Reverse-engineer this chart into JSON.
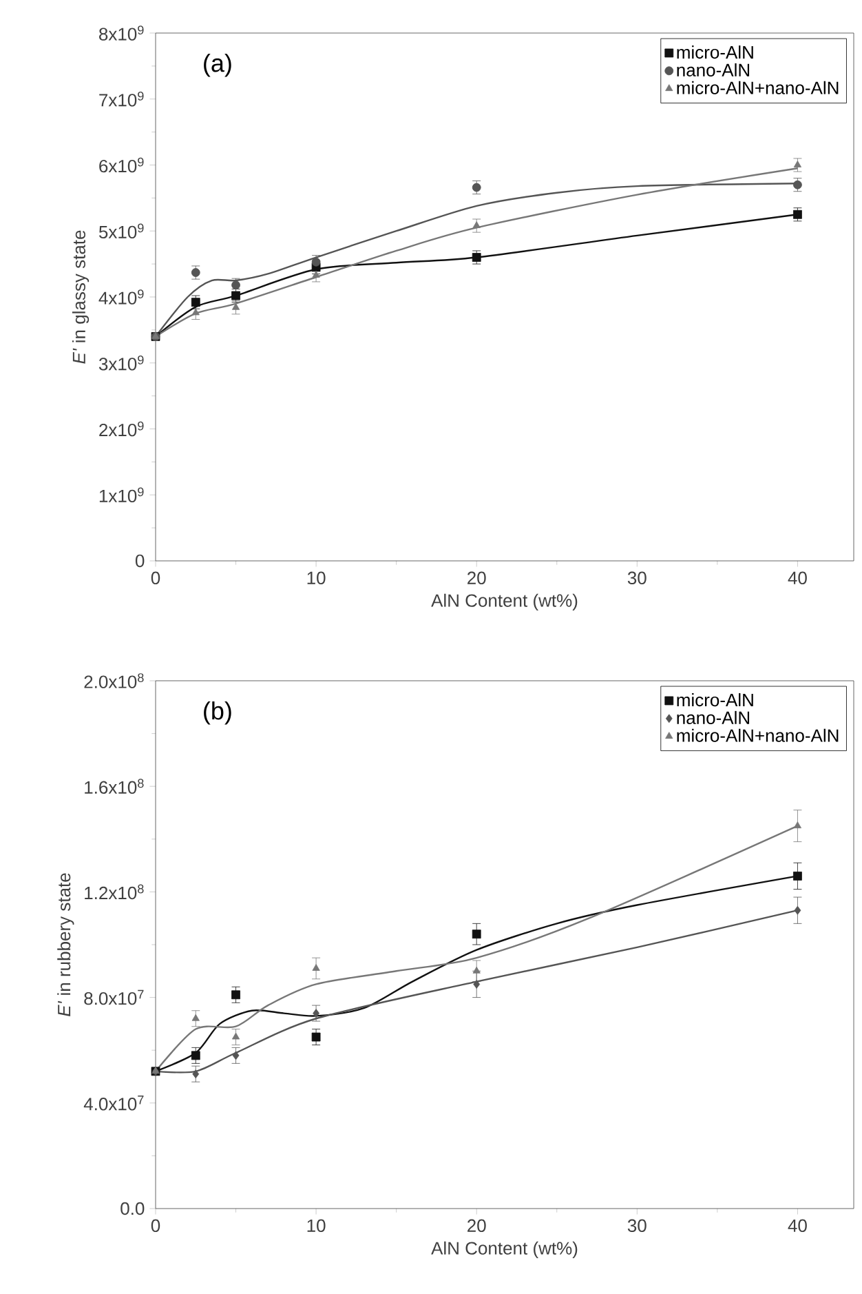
{
  "chart_data": [
    {
      "type": "scatter",
      "xlabel": "AlN Content (wt%)",
      "ylabel": "*E'* in glassy state",
      "annotations": [
        "(a)"
      ],
      "legend": "top right",
      "xlim": [
        0,
        43.5
      ],
      "xticks": [
        0,
        10,
        20,
        30,
        40
      ],
      "ylim": [
        0,
        8000000000.0
      ],
      "yticks": [
        0,
        {
          "value": 1000000000.0,
          "label": "1x10$^{9}$"
        },
        {
          "value": 2000000000.0,
          "label": "2x10$^{9}$"
        },
        {
          "value": 3000000000.0,
          "label": "3x10$^{9}$"
        },
        {
          "value": 4000000000.0,
          "label": "4x10$^{9}$"
        },
        {
          "value": 5000000000.0,
          "label": "5x10$^{9}$"
        },
        {
          "value": 6000000000.0,
          "label": "6x10$^{9}$"
        },
        {
          "value": 7000000000.0,
          "label": "7x10$^{9}$"
        },
        {
          "value": 8000000000.0,
          "label": "8x10$^{9}$"
        }
      ],
      "series": [
        {
          "name": "micro-AlN",
          "color": "#111111",
          "marker": "square",
          "x": [
            0,
            2.5,
            5,
            10,
            20,
            40
          ],
          "values": [
            3400000000.0,
            3920000000.0,
            4020000000.0,
            4450000000.0,
            4600000000.0,
            5250000000.0
          ],
          "errors": [
            null,
            100000000.0,
            100000000.0,
            100000000.0,
            100000000.0,
            100000000.0
          ]
        },
        {
          "name": "nano-AlN",
          "color": "#555555",
          "marker": "circle",
          "x": [
            0,
            2.5,
            5,
            10,
            20,
            40
          ],
          "values": [
            3400000000.0,
            4370000000.0,
            4180000000.0,
            4530000000.0,
            5660000000.0,
            5700000000.0
          ],
          "errors": [
            null,
            100000000.0,
            100000000.0,
            100000000.0,
            100000000.0,
            100000000.0
          ]
        },
        {
          "name": "micro-AlN+nano-AlN",
          "color": "#777777",
          "marker": "triangle",
          "x": [
            0,
            2.5,
            5,
            10,
            20,
            40
          ],
          "values": [
            3400000000.0,
            3760000000.0,
            3840000000.0,
            4330000000.0,
            5080000000.0,
            6000000000.0
          ],
          "errors": [
            null,
            100000000.0,
            100000000.0,
            100000000.0,
            100000000.0,
            100000000.0
          ]
        },
        {
          "type": "line",
          "color": "#111111",
          "marker": "none",
          "x": [
            0,
            2.5,
            5,
            10,
            15,
            20,
            30,
            40
          ],
          "values": [
            3400000000.0,
            3850000000.0,
            4020000000.0,
            4420000000.0,
            4520000000.0,
            4600000000.0,
            4930000000.0,
            5250000000.0
          ]
        },
        {
          "type": "line",
          "color": "#555555",
          "marker": "none",
          "x": [
            0,
            2,
            3.5,
            5,
            7,
            10,
            15,
            20,
            25,
            30,
            40
          ],
          "values": [
            3400000000.0,
            4000000000.0,
            4250000000.0,
            4250000000.0,
            4350000000.0,
            4600000000.0,
            5000000000.0,
            5380000000.0,
            5580000000.0,
            5680000000.0,
            5720000000.0
          ]
        },
        {
          "type": "line",
          "color": "#777777",
          "marker": "none",
          "x": [
            0,
            2.5,
            5,
            10,
            15,
            20,
            30,
            40
          ],
          "values": [
            3400000000.0,
            3750000000.0,
            3900000000.0,
            4300000000.0,
            4700000000.0,
            5050000000.0,
            5550000000.0,
            5950000000.0
          ]
        }
      ]
    },
    {
      "type": "scatter",
      "xlabel": "AlN Content (wt%)",
      "ylabel": "*E'* in rubbery state",
      "annotations": [
        "(b)"
      ],
      "legend": "top right",
      "xlim": [
        0,
        43.5
      ],
      "xticks": [
        0,
        10,
        20,
        30,
        40
      ],
      "ylim": [
        0,
        200000000.0
      ],
      "yticks": [
        {
          "value": 0,
          "label": "0.0"
        },
        {
          "value": 40000000.0,
          "label": "4.0x10$^{7}$"
        },
        {
          "value": 80000000.0,
          "label": "8.0x10$^{7}$"
        },
        {
          "value": 120000000.0,
          "label": "1.2x10$^{8}$"
        },
        {
          "value": 160000000.0,
          "label": "1.6x10$^{8}$"
        },
        {
          "value": 200000000.0,
          "label": "2.0x10$^{8}$"
        }
      ],
      "series": [
        {
          "name": "micro-AlN",
          "color": "#111111",
          "marker": "square",
          "x": [
            0,
            2.5,
            5,
            10,
            20,
            40
          ],
          "values": [
            52000000.0,
            58000000.0,
            81000000.0,
            65000000.0,
            104000000.0,
            126000000.0
          ],
          "errors": [
            null,
            3000000.0,
            3000000.0,
            3000000.0,
            4000000.0,
            5000000.0
          ]
        },
        {
          "name": "nano-AlN",
          "color": "#555555",
          "marker": "diamond",
          "x": [
            0,
            2.5,
            5,
            10,
            20,
            40
          ],
          "values": [
            52000000.0,
            51000000.0,
            58000000.0,
            74000000.0,
            85000000.0,
            113000000.0
          ],
          "errors": [
            null,
            3000000.0,
            3000000.0,
            3000000.0,
            5000000.0,
            5000000.0
          ]
        },
        {
          "name": "micro-AlN+nano-AlN",
          "color": "#777777",
          "marker": "triangle",
          "x": [
            0,
            2.5,
            5,
            10,
            20,
            40
          ],
          "values": [
            52000000.0,
            72000000.0,
            65000000.0,
            91000000.0,
            90000000.0,
            145000000.0
          ],
          "errors": [
            null,
            3000000.0,
            3000000.0,
            4000000.0,
            4000000.0,
            6000000.0
          ]
        },
        {
          "type": "line",
          "color": "#111111",
          "marker": "none",
          "x": [
            0,
            2.5,
            4,
            6,
            8,
            10,
            13,
            16,
            20,
            25,
            30,
            40
          ],
          "values": [
            52000000.0,
            59000000.0,
            70000000.0,
            75000000.0,
            74000000.0,
            73000000.0,
            76000000.0,
            86000000.0,
            98000000.0,
            108000000.0,
            115000000.0,
            126000000.0
          ]
        },
        {
          "type": "line",
          "color": "#555555",
          "marker": "none",
          "x": [
            0,
            2.5,
            5,
            10,
            20,
            30,
            40
          ],
          "values": [
            52000000.0,
            52000000.0,
            59000000.0,
            72000000.0,
            86000000.0,
            99000000.0,
            113000000.0
          ]
        },
        {
          "type": "line",
          "color": "#777777",
          "marker": "none",
          "x": [
            0,
            2.5,
            5,
            7,
            10,
            15,
            20,
            27,
            40
          ],
          "values": [
            52000000.0,
            68000000.0,
            69000000.0,
            77000000.0,
            85000000.0,
            90000000.0,
            95000000.0,
            110000000.0,
            145000000.0
          ]
        }
      ]
    }
  ]
}
